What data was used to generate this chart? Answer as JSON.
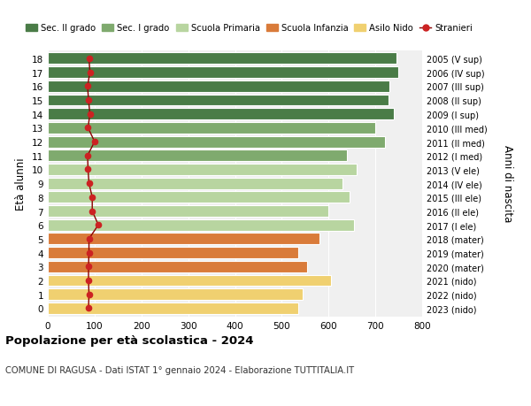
{
  "ages": [
    18,
    17,
    16,
    15,
    14,
    13,
    12,
    11,
    10,
    9,
    8,
    7,
    6,
    5,
    4,
    3,
    2,
    1,
    0
  ],
  "right_labels": [
    "2005 (V sup)",
    "2006 (IV sup)",
    "2007 (III sup)",
    "2008 (II sup)",
    "2009 (I sup)",
    "2010 (III med)",
    "2011 (II med)",
    "2012 (I med)",
    "2013 (V ele)",
    "2014 (IV ele)",
    "2015 (III ele)",
    "2016 (II ele)",
    "2017 (I ele)",
    "2018 (mater)",
    "2019 (mater)",
    "2020 (mater)",
    "2021 (nido)",
    "2022 (nido)",
    "2023 (nido)"
  ],
  "bar_values": [
    745,
    748,
    730,
    728,
    740,
    700,
    720,
    640,
    660,
    630,
    645,
    600,
    655,
    580,
    535,
    555,
    605,
    545,
    535
  ],
  "bar_colors": [
    "#4a7c47",
    "#4a7c47",
    "#4a7c47",
    "#4a7c47",
    "#4a7c47",
    "#7faa6e",
    "#7faa6e",
    "#7faa6e",
    "#b8d5a0",
    "#b8d5a0",
    "#b8d5a0",
    "#b8d5a0",
    "#b8d5a0",
    "#d97b3a",
    "#d97b3a",
    "#d97b3a",
    "#f0d070",
    "#f0d070",
    "#f0d070"
  ],
  "stranieri_values": [
    88,
    90,
    85,
    87,
    90,
    86,
    100,
    85,
    86,
    88,
    95,
    95,
    108,
    88,
    88,
    87,
    87,
    88,
    87
  ],
  "legend_labels": [
    "Sec. II grado",
    "Sec. I grado",
    "Scuola Primaria",
    "Scuola Infanzia",
    "Asilo Nido",
    "Stranieri"
  ],
  "legend_colors": [
    "#4a7c47",
    "#7faa6e",
    "#b8d5a0",
    "#d97b3a",
    "#f0d070",
    "#c0392b"
  ],
  "title": "Popolazione per età scolastica - 2024",
  "subtitle": "COMUNE DI RAGUSA - Dati ISTAT 1° gennaio 2024 - Elaborazione TUTTITALIA.IT",
  "ylabel_left": "Età alunni",
  "ylabel_right": "Anni di nascita",
  "xlim": [
    0,
    800
  ],
  "xticks": [
    0,
    100,
    200,
    300,
    400,
    500,
    600,
    700,
    800
  ],
  "ylim": [
    -0.6,
    18.6
  ],
  "bg_color": "#ffffff",
  "plot_bg_color": "#f0f0f0",
  "grid_color": "#ffffff",
  "bar_height": 0.82,
  "stranieri_line_color": "#8b0000",
  "stranieri_marker_color": "#cc2222"
}
